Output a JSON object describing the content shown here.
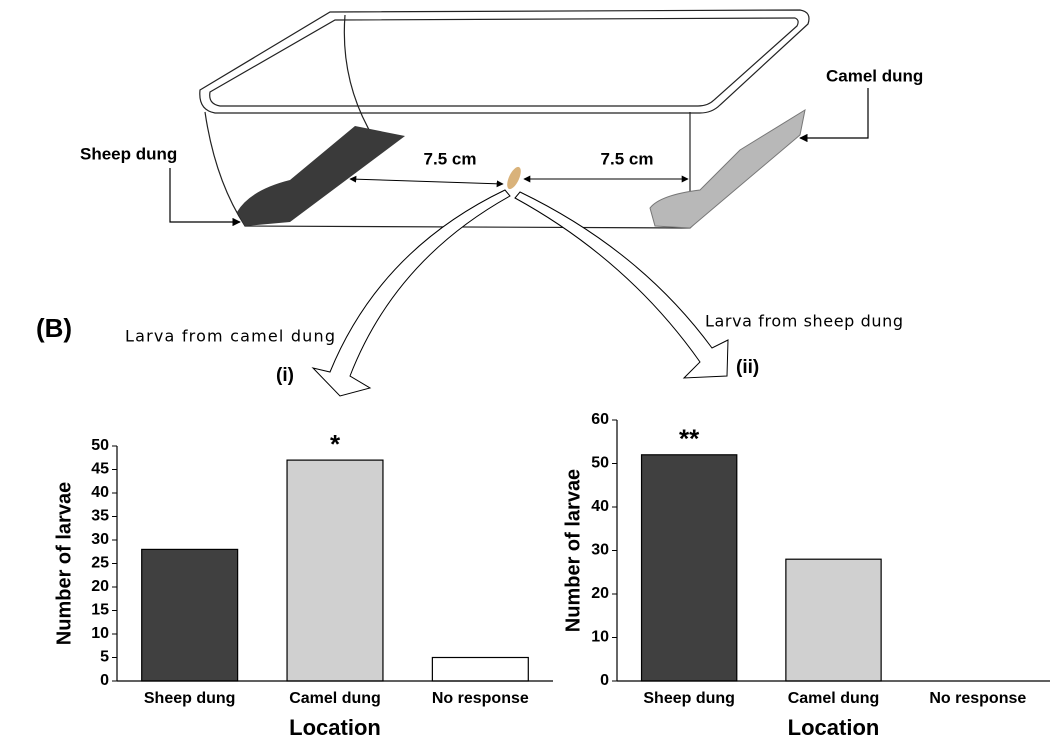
{
  "diagram": {
    "sheep_label": "Sheep dung",
    "camel_label": "Camel dung",
    "distance_left": "7.5 cm",
    "distance_right": "7.5 cm",
    "panel": "(B)",
    "arrow_left": "Larva from camel dung",
    "arrow_right": "Larva from sheep dung"
  },
  "chart_data": [
    {
      "type": "bar",
      "panel": "(i)",
      "x_label": "Location",
      "y_label": "Number of larvae",
      "categories": [
        "Sheep dung",
        "Camel dung",
        "No response"
      ],
      "values": [
        28,
        47,
        5
      ],
      "colors": [
        "#404040",
        "#d0d0d0",
        "#ffffff"
      ],
      "ylim": [
        0,
        50
      ],
      "yticks": [
        0,
        5,
        10,
        15,
        20,
        25,
        30,
        35,
        40,
        45,
        50
      ],
      "annotations": [
        {
          "category": "Camel dung",
          "text": "*"
        }
      ]
    },
    {
      "type": "bar",
      "panel": "(ii)",
      "x_label": "Location",
      "y_label": "Number of larvae",
      "categories": [
        "Sheep dung",
        "Camel dung",
        "No response"
      ],
      "values": [
        52,
        28,
        0
      ],
      "colors": [
        "#404040",
        "#d0d0d0",
        "#ffffff"
      ],
      "ylim": [
        0,
        60
      ],
      "yticks": [
        0,
        10,
        20,
        30,
        40,
        50,
        60
      ],
      "annotations": [
        {
          "category": "Sheep dung",
          "text": "**"
        }
      ]
    }
  ]
}
